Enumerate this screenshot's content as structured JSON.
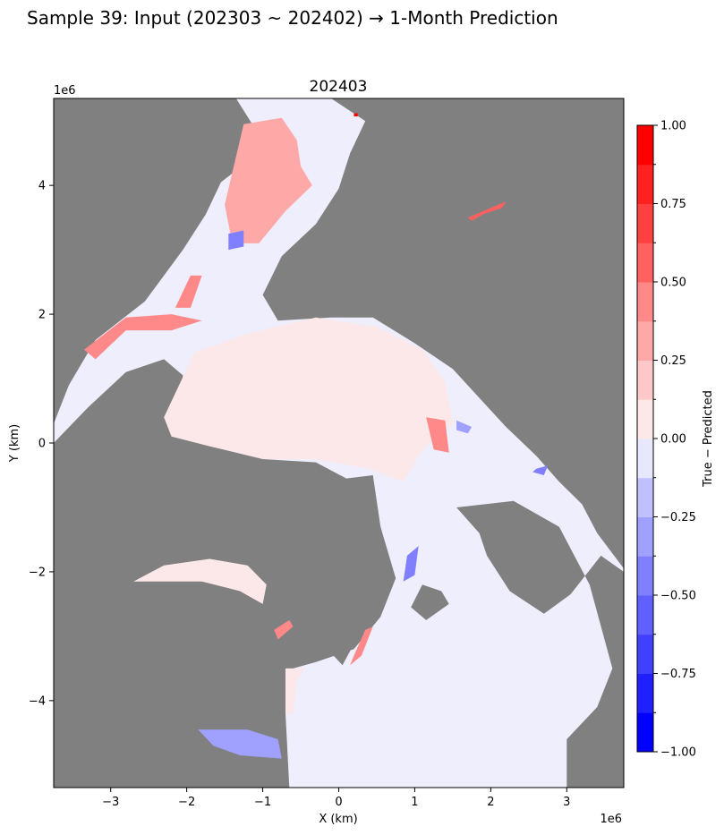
{
  "chart_data": {
    "type": "heatmap",
    "suptitle": "Sample 39: Input (202303 ~ 202402) → 1-Month Prediction",
    "title": "202403",
    "xlabel": "X (km)",
    "ylabel": "Y (km)",
    "x_offset_text": "1e6",
    "y_offset_text": "1e6",
    "xlim": [
      -3.75,
      3.75
    ],
    "ylim": [
      -5.35,
      5.35
    ],
    "x_scale_factor": 1000000,
    "y_scale_factor": 1000000,
    "xticks": [
      {
        "value": -3,
        "label": "−3"
      },
      {
        "value": -2,
        "label": "−2"
      },
      {
        "value": -1,
        "label": "−1"
      },
      {
        "value": 0,
        "label": "0"
      },
      {
        "value": 1,
        "label": "1"
      },
      {
        "value": 2,
        "label": "2"
      },
      {
        "value": 3,
        "label": "3"
      }
    ],
    "yticks": [
      {
        "value": 4,
        "label": "4"
      },
      {
        "value": 2,
        "label": "2"
      },
      {
        "value": 0,
        "label": "0"
      },
      {
        "value": -2,
        "label": "−2"
      },
      {
        "value": -4,
        "label": "−4"
      }
    ],
    "colorbar": {
      "label": "True − Predicted",
      "range": [
        -1.0,
        1.0
      ],
      "levels": [
        -1.0,
        -0.875,
        -0.75,
        -0.625,
        -0.5,
        -0.375,
        -0.25,
        -0.125,
        0.0,
        0.125,
        0.25,
        0.375,
        0.5,
        0.625,
        0.75,
        0.875,
        1.0
      ],
      "colors": [
        "#0000ff",
        "#2020ff",
        "#4040ff",
        "#6060ff",
        "#8080ff",
        "#a0a0ff",
        "#c0c0ff",
        "#e8e8fc",
        "#fce8e8",
        "#ffc8c8",
        "#ffa8a8",
        "#ff8888",
        "#ff6060",
        "#ff4040",
        "#ff2020",
        "#ff0000"
      ],
      "ticks": [
        {
          "value": 1.0,
          "label": "1.00"
        },
        {
          "value": 0.75,
          "label": "0.75"
        },
        {
          "value": 0.5,
          "label": "0.50"
        },
        {
          "value": 0.25,
          "label": "0.25"
        },
        {
          "value": 0.0,
          "label": "0.00"
        },
        {
          "value": -0.25,
          "label": "−0.25"
        },
        {
          "value": -0.5,
          "label": "−0.50"
        },
        {
          "value": -0.75,
          "label": "−0.75"
        },
        {
          "value": -1.0,
          "label": "−1.00"
        }
      ]
    },
    "land_color": "#808080",
    "near_zero_color": "#eeeefc",
    "land_regions": [
      {
        "name": "north-america",
        "points": [
          [
            -3.75,
            -0.05
          ],
          [
            -3.5,
            0.05
          ],
          [
            -3.1,
            0.9
          ],
          [
            -2.6,
            1.3
          ],
          [
            -2.0,
            1.5
          ],
          [
            -1.3,
            1.95
          ],
          [
            -0.8,
            2.4
          ],
          [
            -0.7,
            3.0
          ],
          [
            -1.5,
            3.4
          ],
          [
            -1.7,
            3.7
          ],
          [
            -1.6,
            4.0
          ],
          [
            -1.2,
            4.3
          ],
          [
            -1.15,
            4.9
          ],
          [
            -0.6,
            5.0
          ],
          [
            -0.1,
            4.3
          ],
          [
            0.35,
            5.35
          ],
          [
            -3.75,
            5.35
          ]
        ],
        "hidden": true
      },
      {
        "name": "eurasia-top",
        "points": [
          [
            -0.1,
            5.35
          ],
          [
            3.75,
            5.35
          ],
          [
            3.75,
            -1.95
          ],
          [
            3.4,
            -1.4
          ],
          [
            3.2,
            -0.95
          ],
          [
            2.9,
            -0.6
          ],
          [
            2.6,
            -0.2
          ],
          [
            2.2,
            0.25
          ],
          [
            1.85,
            0.7
          ],
          [
            1.5,
            1.15
          ],
          [
            1.0,
            1.55
          ],
          [
            0.45,
            1.95
          ],
          [
            -0.1,
            1.95
          ],
          [
            -0.8,
            1.9
          ],
          [
            -1.0,
            2.3
          ],
          [
            -0.75,
            2.9
          ],
          [
            -0.3,
            3.4
          ],
          [
            0.0,
            3.95
          ],
          [
            0.15,
            4.5
          ],
          [
            0.35,
            5.0
          ]
        ]
      },
      {
        "name": "asia-left-bottom",
        "points": [
          [
            -3.75,
            -5.35
          ],
          [
            -3.75,
            0.0
          ],
          [
            -3.3,
            0.55
          ],
          [
            -2.8,
            1.1
          ],
          [
            -2.3,
            1.3
          ],
          [
            -2.05,
            1.05
          ],
          [
            -2.1,
            0.35
          ],
          [
            -1.5,
            0.0
          ],
          [
            -1.0,
            -0.25
          ],
          [
            -0.3,
            -0.3
          ],
          [
            0.1,
            -0.55
          ],
          [
            0.45,
            -0.5
          ],
          [
            0.55,
            -1.3
          ],
          [
            0.75,
            -2.1
          ],
          [
            0.55,
            -2.7
          ],
          [
            0.2,
            -3.2
          ],
          [
            -0.3,
            -3.4
          ],
          [
            -0.6,
            -3.5
          ],
          [
            -0.7,
            -4.2
          ],
          [
            -0.65,
            -5.35
          ]
        ]
      },
      {
        "name": "greenland",
        "points": [
          [
            -1.05,
            -0.85
          ],
          [
            -0.5,
            -0.75
          ],
          [
            0.1,
            -0.8
          ],
          [
            0.55,
            -1.3
          ],
          [
            0.55,
            -2.3
          ],
          [
            0.3,
            -2.9
          ],
          [
            0.05,
            -3.45
          ],
          [
            -0.15,
            -3.2
          ],
          [
            -0.45,
            -2.8
          ],
          [
            -0.6,
            -2.2
          ],
          [
            -0.8,
            -1.7
          ],
          [
            -1.05,
            -1.2
          ]
        ]
      },
      {
        "name": "europe-right-bottom",
        "points": [
          [
            3.75,
            -5.35
          ],
          [
            3.75,
            -2.0
          ],
          [
            3.45,
            -1.75
          ],
          [
            3.05,
            -2.35
          ],
          [
            2.7,
            -2.65
          ],
          [
            2.25,
            -2.3
          ],
          [
            1.95,
            -1.75
          ],
          [
            1.85,
            -1.4
          ],
          [
            1.55,
            -1.0
          ],
          [
            2.3,
            -0.9
          ],
          [
            2.9,
            -1.3
          ],
          [
            3.3,
            -2.2
          ],
          [
            3.6,
            -3.5
          ],
          [
            3.4,
            -4.1
          ],
          [
            3.0,
            -4.6
          ],
          [
            3.0,
            -5.35
          ]
        ]
      },
      {
        "name": "svalbard",
        "points": [
          [
            0.95,
            -2.55
          ],
          [
            1.1,
            -2.2
          ],
          [
            1.35,
            -2.3
          ],
          [
            1.45,
            -2.5
          ],
          [
            1.15,
            -2.75
          ]
        ]
      },
      {
        "name": "canadian-archipelago-1",
        "points": [
          [
            -2.7,
            -2.15
          ],
          [
            -2.2,
            -1.9
          ],
          [
            -1.7,
            -2.0
          ],
          [
            -1.4,
            -2.3
          ],
          [
            -1.3,
            -2.9
          ],
          [
            -1.6,
            -3.3
          ],
          [
            -2.1,
            -3.1
          ],
          [
            -2.55,
            -2.75
          ]
        ]
      },
      {
        "name": "canadian-archipelago-2",
        "points": [
          [
            -2.3,
            -0.55
          ],
          [
            -1.8,
            -0.45
          ],
          [
            -1.2,
            -0.6
          ],
          [
            -1.1,
            -1.0
          ],
          [
            -1.5,
            -1.3
          ],
          [
            -2.0,
            -1.2
          ],
          [
            -2.3,
            -0.9
          ]
        ]
      },
      {
        "name": "canadian-archipelago-3",
        "points": [
          [
            -3.75,
            -3.3
          ],
          [
            -3.1,
            -3.4
          ],
          [
            -2.6,
            -3.8
          ],
          [
            -2.3,
            -4.3
          ],
          [
            -2.1,
            -4.6
          ],
          [
            -1.6,
            -4.9
          ],
          [
            -1.0,
            -5.0
          ],
          [
            -0.7,
            -4.7
          ],
          [
            -0.7,
            -5.35
          ],
          [
            -3.75,
            -5.35
          ]
        ]
      },
      {
        "name": "wrangel-island",
        "points": [
          [
            -0.1,
            -0.05
          ],
          [
            0.05,
            -0.05
          ],
          [
            0.1,
            0.05
          ],
          [
            -0.05,
            0.12
          ]
        ]
      },
      {
        "name": "north-america-west",
        "points": [
          [
            -3.75,
            5.35
          ],
          [
            -1.35,
            5.35
          ],
          [
            -0.95,
            4.6
          ],
          [
            -1.55,
            4.05
          ],
          [
            -1.75,
            3.55
          ],
          [
            -2.05,
            3.0
          ],
          [
            -2.55,
            2.2
          ],
          [
            -3.2,
            1.6
          ],
          [
            -3.55,
            0.9
          ],
          [
            -3.75,
            0.3
          ]
        ]
      }
    ],
    "anomaly_regions": [
      {
        "name": "hudson-bay-red",
        "value": 0.55,
        "points": [
          [
            -1.15,
            4.85
          ],
          [
            -0.9,
            4.95
          ],
          [
            -0.7,
            4.6
          ],
          [
            -0.75,
            4.1
          ],
          [
            -0.95,
            3.45
          ],
          [
            -1.15,
            3.2
          ],
          [
            -1.25,
            3.6
          ],
          [
            -1.25,
            4.3
          ]
        ]
      },
      {
        "name": "hudson-bay-pink",
        "value": 0.3,
        "points": [
          [
            -1.25,
            4.95
          ],
          [
            -0.75,
            5.05
          ],
          [
            -0.55,
            4.7
          ],
          [
            -0.5,
            4.3
          ],
          [
            -0.35,
            4.0
          ],
          [
            -0.7,
            3.6
          ],
          [
            -1.05,
            3.1
          ],
          [
            -1.4,
            3.1
          ],
          [
            -1.5,
            3.7
          ]
        ]
      },
      {
        "name": "hudson-strait-blue",
        "value": -0.4,
        "points": [
          [
            -1.45,
            3.25
          ],
          [
            -1.25,
            3.3
          ],
          [
            -1.25,
            3.05
          ],
          [
            -1.45,
            3.0
          ]
        ]
      },
      {
        "name": "arctic-central-pink",
        "value": 0.06,
        "points": [
          [
            -2.3,
            0.4
          ],
          [
            -1.9,
            1.4
          ],
          [
            -1.2,
            1.7
          ],
          [
            -0.3,
            1.95
          ],
          [
            0.5,
            1.8
          ],
          [
            1.1,
            1.45
          ],
          [
            1.4,
            0.95
          ],
          [
            1.5,
            0.3
          ],
          [
            1.1,
            -0.1
          ],
          [
            0.85,
            -0.6
          ],
          [
            0.4,
            -0.4
          ],
          [
            -0.3,
            -0.25
          ],
          [
            -1.0,
            -0.25
          ],
          [
            -1.7,
            -0.05
          ],
          [
            -2.2,
            0.1
          ]
        ]
      },
      {
        "name": "beaufort-coast-red",
        "value": 0.45,
        "points": [
          [
            -3.35,
            1.45
          ],
          [
            -2.8,
            1.95
          ],
          [
            -2.2,
            2.0
          ],
          [
            -1.8,
            1.9
          ],
          [
            -2.2,
            1.75
          ],
          [
            -2.8,
            1.75
          ],
          [
            -3.2,
            1.3
          ]
        ]
      },
      {
        "name": "bering-coast-red",
        "value": 0.4,
        "points": [
          [
            -2.15,
            2.1
          ],
          [
            -1.95,
            2.6
          ],
          [
            -1.8,
            2.6
          ],
          [
            -1.95,
            2.1
          ]
        ]
      },
      {
        "name": "laptev-red",
        "value": 0.4,
        "points": [
          [
            1.15,
            0.4
          ],
          [
            1.4,
            0.35
          ],
          [
            1.45,
            -0.15
          ],
          [
            1.25,
            -0.1
          ]
        ]
      },
      {
        "name": "kara-blue",
        "value": -0.3,
        "points": [
          [
            1.55,
            0.35
          ],
          [
            1.75,
            0.25
          ],
          [
            1.7,
            0.15
          ],
          [
            1.55,
            0.2
          ]
        ]
      },
      {
        "name": "barents-blue",
        "value": -0.45,
        "points": [
          [
            0.9,
            -1.75
          ],
          [
            1.05,
            -1.6
          ],
          [
            1.0,
            -2.05
          ],
          [
            0.85,
            -2.15
          ]
        ]
      },
      {
        "name": "greenland-east-red",
        "value": 0.45,
        "points": [
          [
            0.15,
            -3.45
          ],
          [
            0.3,
            -3.3
          ],
          [
            0.45,
            -2.85
          ],
          [
            0.35,
            -2.9
          ],
          [
            0.2,
            -3.3
          ]
        ]
      },
      {
        "name": "baffin-red",
        "value": 0.45,
        "points": [
          [
            -0.85,
            -2.9
          ],
          [
            -0.65,
            -2.75
          ],
          [
            -0.6,
            -2.85
          ],
          [
            -0.8,
            -3.05
          ]
        ]
      },
      {
        "name": "labrador-blue",
        "value": -0.3,
        "points": [
          [
            -1.85,
            -4.45
          ],
          [
            -1.2,
            -4.45
          ],
          [
            -0.8,
            -4.6
          ],
          [
            -0.75,
            -4.9
          ],
          [
            -1.3,
            -4.85
          ],
          [
            -1.65,
            -4.7
          ]
        ]
      },
      {
        "name": "okhotsk-red",
        "value": 0.55,
        "points": [
          [
            1.7,
            3.5
          ],
          [
            2.0,
            3.65
          ],
          [
            2.2,
            3.75
          ],
          [
            2.15,
            3.65
          ],
          [
            1.9,
            3.55
          ],
          [
            1.75,
            3.45
          ]
        ]
      },
      {
        "name": "canadian-arch-pink",
        "value": 0.08,
        "points": [
          [
            -2.7,
            -2.15
          ],
          [
            -1.8,
            -2.15
          ],
          [
            -1.3,
            -2.3
          ],
          [
            -1.0,
            -2.5
          ],
          [
            -0.95,
            -2.2
          ],
          [
            -1.2,
            -1.9
          ],
          [
            -1.7,
            -1.8
          ],
          [
            -2.3,
            -1.9
          ]
        ]
      },
      {
        "name": "north-atlantic-pink",
        "value": 0.1,
        "points": [
          [
            -0.6,
            -4.2
          ],
          [
            -0.55,
            -3.7
          ],
          [
            -0.45,
            -3.5
          ],
          [
            -0.7,
            -3.5
          ],
          [
            -0.7,
            -4.2
          ]
        ]
      },
      {
        "name": "scandinavia-blue",
        "value": -0.45,
        "points": [
          [
            2.6,
            -0.4
          ],
          [
            2.75,
            -0.35
          ],
          [
            2.7,
            -0.5
          ],
          [
            2.55,
            -0.45
          ]
        ]
      },
      {
        "name": "red-pixel",
        "value": 1.0,
        "points": [
          [
            0.2,
            5.12
          ],
          [
            0.25,
            5.12
          ],
          [
            0.25,
            5.07
          ],
          [
            0.2,
            5.07
          ]
        ]
      }
    ]
  }
}
